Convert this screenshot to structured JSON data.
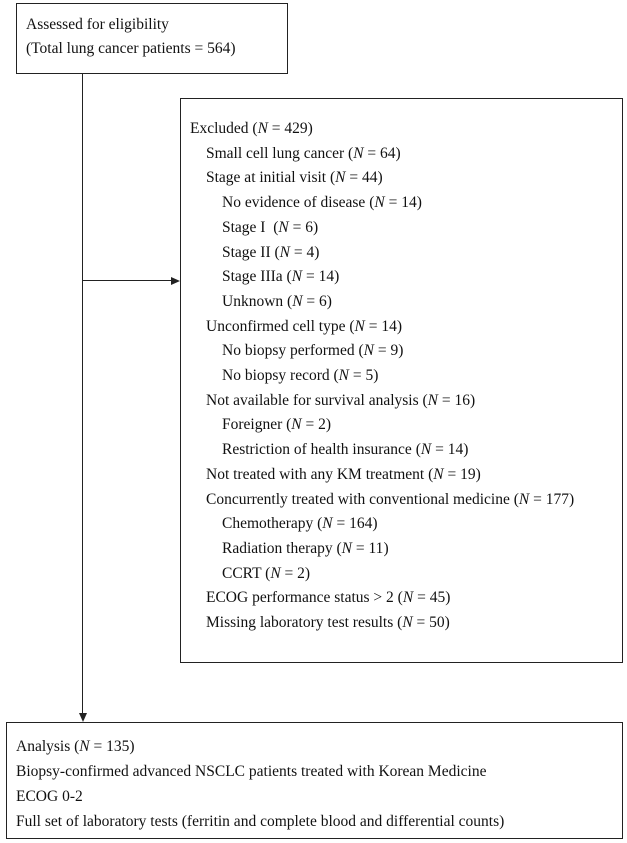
{
  "top_box": {
    "lines": [
      "Assessed for eligibility",
      "(Total lung cancer patients = 564)"
    ]
  },
  "excluded_box": {
    "items": [
      {
        "level": 0,
        "label": "Excluded (",
        "n": "429"
      },
      {
        "level": 1,
        "label": "Small cell lung cancer (",
        "n": "64"
      },
      {
        "level": 1,
        "label": "Stage at initial visit (",
        "n": "44"
      },
      {
        "level": 2,
        "label": "No evidence of disease (",
        "n": "14"
      },
      {
        "level": 2,
        "label": "Stage I  (",
        "n": "6"
      },
      {
        "level": 2,
        "label": "Stage II (",
        "n": "4"
      },
      {
        "level": 2,
        "label": "Stage IIIa (",
        "n": "14"
      },
      {
        "level": 2,
        "label": "Unknown (",
        "n": "6"
      },
      {
        "level": 1,
        "label": "Unconfirmed cell type (",
        "n": "14"
      },
      {
        "level": 2,
        "label": "No biopsy performed (",
        "n": "9"
      },
      {
        "level": 2,
        "label": "No biopsy record (",
        "n": "5"
      },
      {
        "level": 1,
        "label": "Not available for survival analysis (",
        "n": "16"
      },
      {
        "level": 2,
        "label": "Foreigner (",
        "n": "2"
      },
      {
        "level": 2,
        "label": "Restriction of health insurance (",
        "n": "14"
      },
      {
        "level": 1,
        "label": "Not treated with any KM treatment (",
        "n": "19"
      },
      {
        "level": 1,
        "label": "Concurrently treated with conventional medicine (",
        "n": "177"
      },
      {
        "level": 2,
        "label": "Chemotherapy (",
        "n": "164"
      },
      {
        "level": 2,
        "label": "Radiation therapy (",
        "n": "11"
      },
      {
        "level": 2,
        "label": "CCRT (",
        "n": "2"
      },
      {
        "level": 1,
        "label": "ECOG performance status > 2 (",
        "n": "45"
      },
      {
        "level": 1,
        "label": "Missing laboratory test results (",
        "n": "50"
      }
    ]
  },
  "bottom_box": {
    "first": {
      "label": "Analysis (",
      "n": "135"
    },
    "lines": [
      "Biopsy-confirmed advanced NSCLC patients treated with Korean Medicine",
      "ECOG 0-2",
      "Full set of laboratory tests (ferritin and complete blood and differential counts)"
    ]
  },
  "n_symbol": "N",
  "n_eq": " = ",
  "close_paren": ")"
}
